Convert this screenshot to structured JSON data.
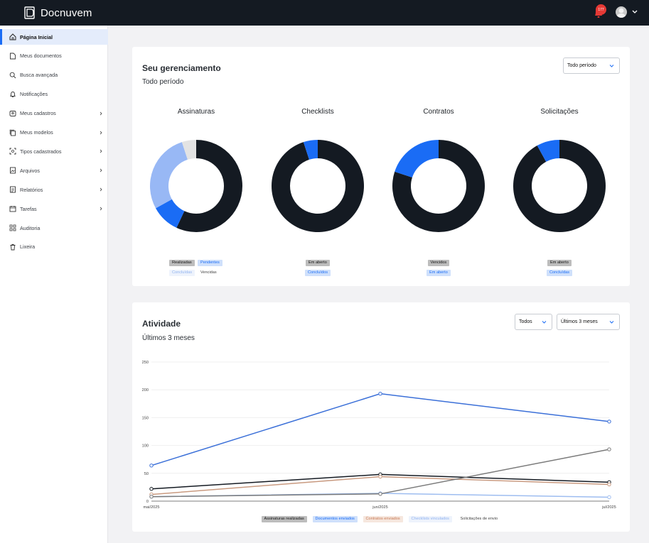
{
  "app": {
    "name": "Docnuvem",
    "notification_count": "177"
  },
  "sidebar": {
    "items": [
      {
        "label": "Página Inicial",
        "icon": "home-icon",
        "active": true,
        "chevron": false
      },
      {
        "label": "Meus documentos",
        "icon": "document-icon",
        "active": false,
        "chevron": false
      },
      {
        "label": "Busca avançada",
        "icon": "search-icon",
        "active": false,
        "chevron": false
      },
      {
        "label": "Notificações",
        "icon": "bell-icon",
        "active": false,
        "chevron": false
      },
      {
        "label": "Meus cadastros",
        "icon": "id-card-icon",
        "active": false,
        "chevron": true
      },
      {
        "label": "Meus modelos",
        "icon": "copy-icon",
        "active": false,
        "chevron": true
      },
      {
        "label": "Tipos cadastrados",
        "icon": "scan-icon",
        "active": false,
        "chevron": true
      },
      {
        "label": "Arquivos",
        "icon": "image-file-icon",
        "active": false,
        "chevron": true
      },
      {
        "label": "Relatórios",
        "icon": "report-icon",
        "active": false,
        "chevron": true
      },
      {
        "label": "Tarefas",
        "icon": "calendar-icon",
        "active": false,
        "chevron": true
      },
      {
        "label": "Auditoria",
        "icon": "grid-icon",
        "active": false,
        "chevron": false
      },
      {
        "label": "Lixeira",
        "icon": "trash-icon",
        "active": false,
        "chevron": false
      }
    ]
  },
  "management": {
    "title": "Seu gerenciamento",
    "subtitle": "Todo período",
    "period_select": "Todo período",
    "donuts": [
      {
        "title": "Assinaturas",
        "slices": [
          {
            "label": "Realizadas",
            "value": 57,
            "color": "#141a22"
          },
          {
            "label": "Pendentes",
            "value": 10,
            "color": "#1a6cf5"
          },
          {
            "label": "Concluídas",
            "value": 28,
            "color": "#98b8f5"
          },
          {
            "label": "Vencidas",
            "value": 5,
            "color": "#e3e3e3"
          }
        ],
        "legend": [
          "Realizadas",
          "Pendentes",
          "Concluídas",
          "Vencidas"
        ]
      },
      {
        "title": "Checklists",
        "slices": [
          {
            "label": "Em aberto",
            "value": 95,
            "color": "#141a22"
          },
          {
            "label": "Concluídos",
            "value": 5,
            "color": "#1a6cf5"
          }
        ],
        "legend": [
          "Em aberto",
          "Concluídos"
        ]
      },
      {
        "title": "Contratos",
        "slices": [
          {
            "label": "Vencidos",
            "value": 80,
            "color": "#141a22"
          },
          {
            "label": "Em aberto",
            "value": 20,
            "color": "#1a6cf5"
          }
        ],
        "legend": [
          "Vencidos",
          "Em aberto"
        ]
      },
      {
        "title": "Solicitações",
        "slices": [
          {
            "label": "Em aberto",
            "value": 92,
            "color": "#141a22"
          },
          {
            "label": "Concluídas",
            "value": 8,
            "color": "#1a6cf5"
          }
        ],
        "legend": [
          "Em aberto",
          "Concluídas"
        ]
      }
    ]
  },
  "activity": {
    "title": "Atividade",
    "subtitle": "Últimos 3 meses",
    "filter_select": "Todos",
    "range_select": "Últimos 3 meses"
  },
  "chart_data": {
    "type": "line",
    "x": [
      "mai/2025",
      "jun/2025",
      "jul/2025"
    ],
    "y_ticks": [
      0,
      50,
      100,
      150,
      200,
      250
    ],
    "ylim": [
      0,
      250
    ],
    "grid": true,
    "legend_position": "bottom",
    "series": [
      {
        "name": "Assinaturas realizadas",
        "values": [
          22,
          48,
          34
        ],
        "color": "#141a22"
      },
      {
        "name": "Documentos enviados",
        "values": [
          64,
          193,
          143
        ],
        "color": "#3a6fd8"
      },
      {
        "name": "Contratos enviados",
        "values": [
          12,
          44,
          30
        ],
        "color": "#c99a80"
      },
      {
        "name": "Checklists vinculados",
        "values": [
          8,
          14,
          7
        ],
        "color": "#9ebdf0"
      },
      {
        "name": "Solicitações de envio",
        "values": [
          8,
          13,
          93
        ],
        "color": "#7a7a7a"
      }
    ]
  }
}
